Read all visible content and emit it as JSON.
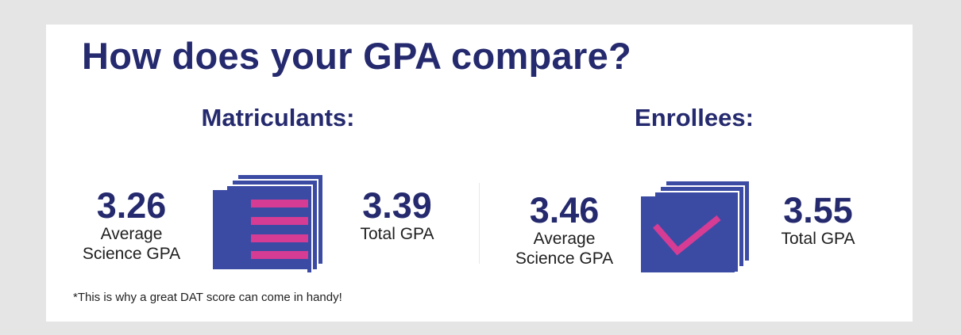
{
  "title": "How does your GPA compare?",
  "groups": [
    {
      "heading": "Matriculants:",
      "science_gpa": {
        "value": "3.26",
        "label_line1": "Average",
        "label_line2": "Science GPA"
      },
      "total_gpa": {
        "value": "3.39",
        "label": "Total GPA"
      },
      "icon": "stacked-list-document-icon"
    },
    {
      "heading": "Enrollees:",
      "science_gpa": {
        "value": "3.46",
        "label_line1": "Average",
        "label_line2": "Science GPA"
      },
      "total_gpa": {
        "value": "3.55",
        "label": "Total GPA"
      },
      "icon": "stacked-checkmark-document-icon"
    }
  ],
  "footnote": "*This is why a great DAT score can come in handy!",
  "colors": {
    "navy": "#252a6e",
    "icon_blue": "#3b4ba4",
    "accent_pink": "#d63c94",
    "background": "#e5e5e5",
    "card": "#ffffff"
  }
}
